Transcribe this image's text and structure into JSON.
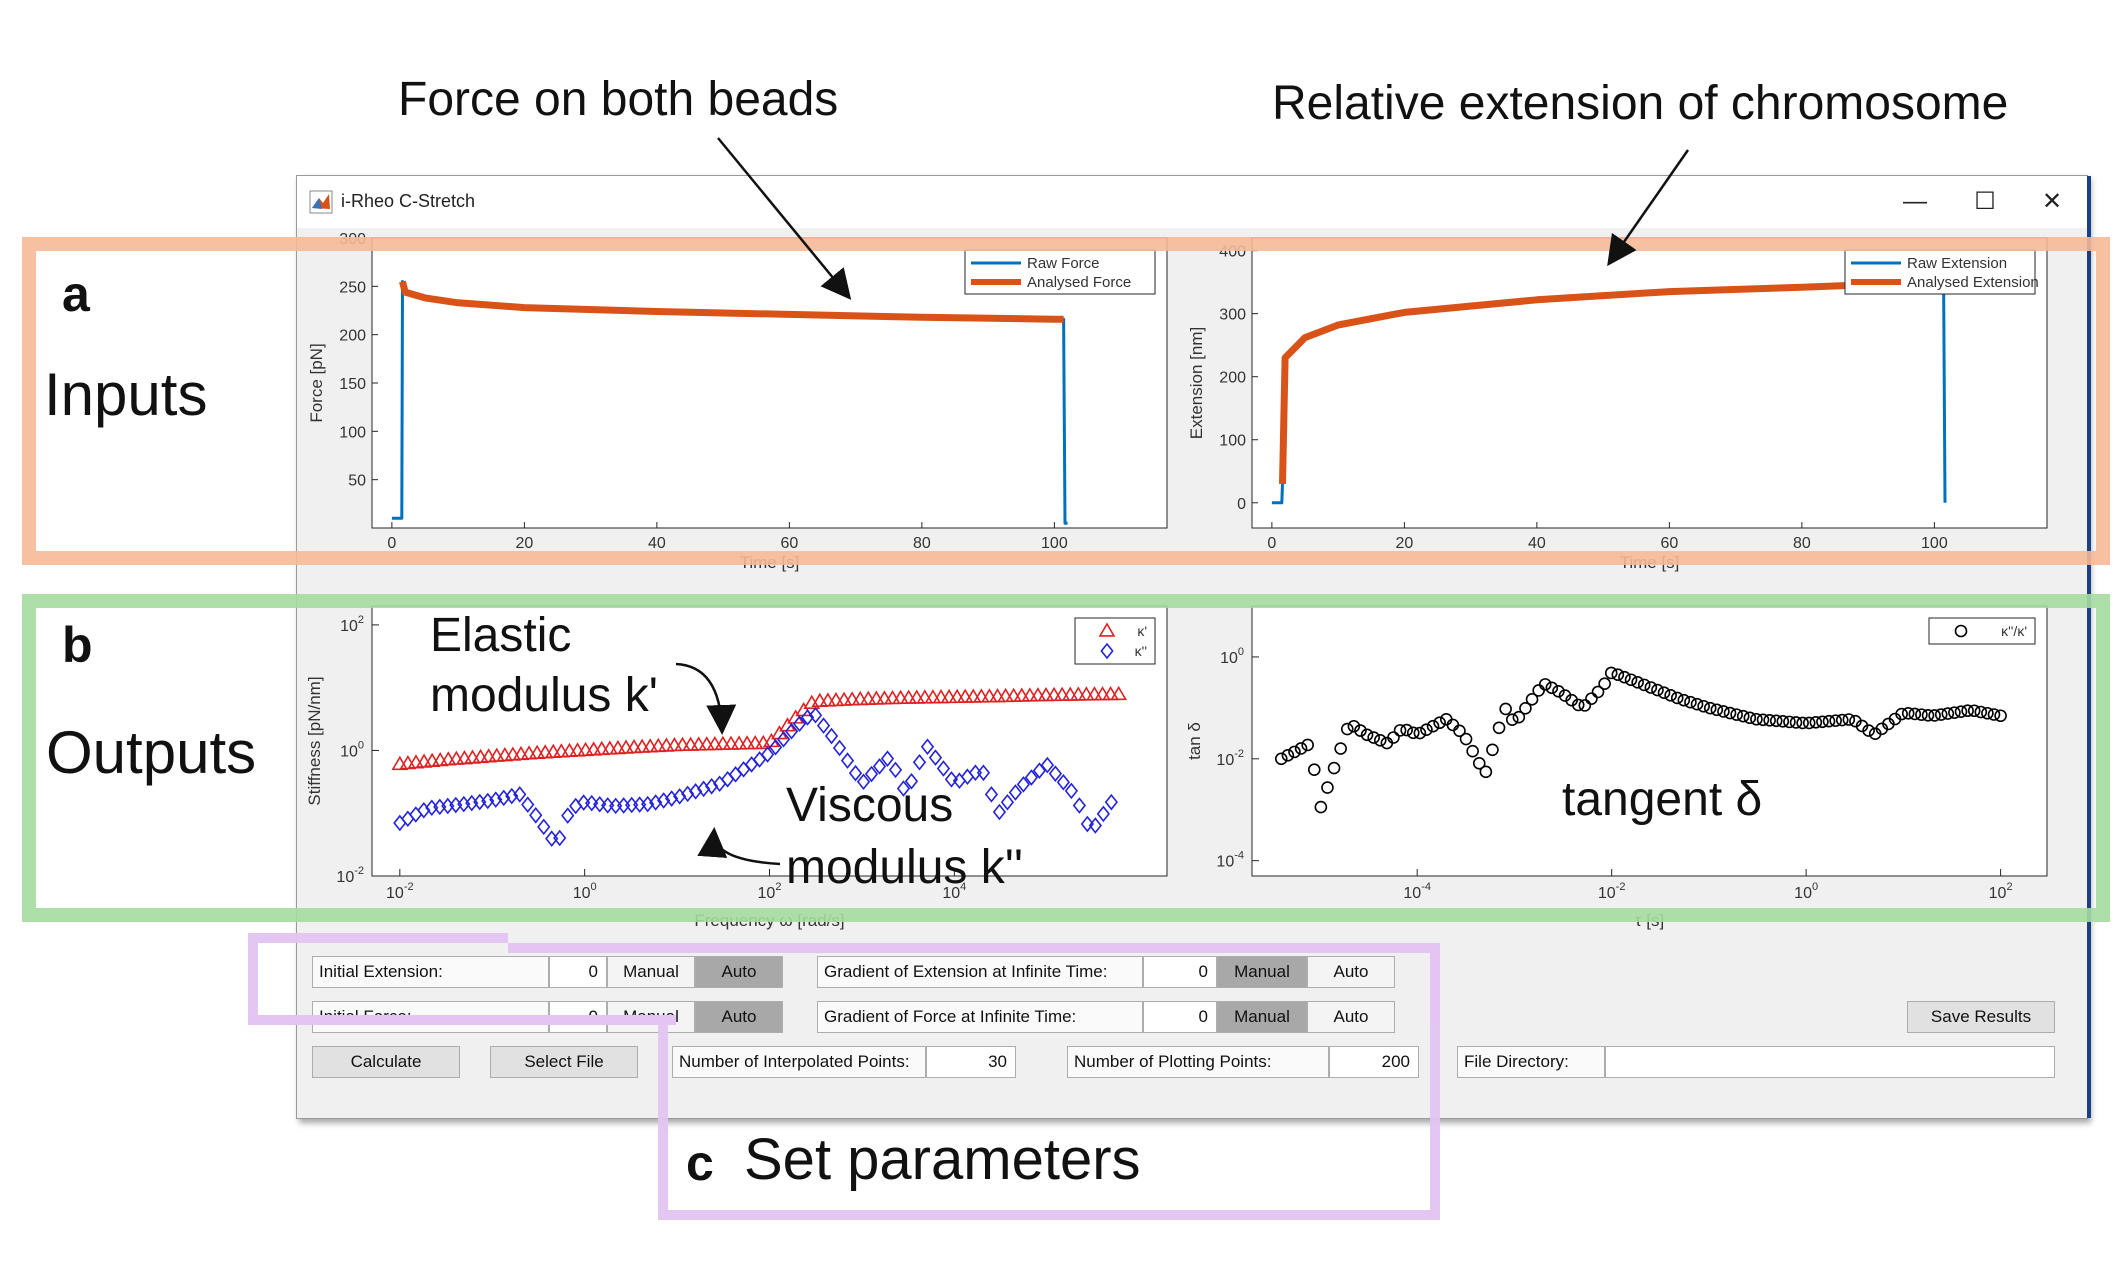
{
  "annotations": {
    "force_callout": "Force on both beads",
    "extension_callout": "Relative extension of chromosome",
    "elastic_line1": "Elastic",
    "elastic_line2": "modulus k'",
    "viscous_line1": "Viscous",
    "viscous_line2": "modulus k''",
    "tangent": "tangent δ",
    "panel_a": "a",
    "panel_b": "b",
    "panel_c": "c",
    "inputs": "Inputs",
    "outputs": "Outputs",
    "set_parameters": "Set parameters",
    "colors": {
      "inputs_box": "#f5b997",
      "outputs_box": "#a6dba0",
      "params_box": "#e3c4f2"
    }
  },
  "window": {
    "title": "i-Rheo C-Stretch",
    "minimize_icon": "minimize-icon",
    "maximize_icon": "maximize-icon",
    "close_icon": "close-icon",
    "app_icon": "matlab-icon"
  },
  "charts": {
    "force": {
      "title": "",
      "xlabel": "Time [s]",
      "ylabel": "Force [pN]",
      "xticks": [
        "0",
        "20",
        "40",
        "60",
        "80",
        "100"
      ],
      "yticks": [
        "50",
        "100",
        "150",
        "200",
        "250",
        "300"
      ],
      "legend": [
        "Raw Force",
        "Analysed Force"
      ]
    },
    "extension": {
      "title": "",
      "xlabel": "Time [s]",
      "ylabel": "Extension [nm]",
      "xticks": [
        "0",
        "20",
        "40",
        "60",
        "80",
        "100"
      ],
      "yticks": [
        "0",
        "100",
        "200",
        "300",
        "400"
      ],
      "legend": [
        "Raw Extension",
        "Analysed Extension"
      ]
    },
    "stiffness": {
      "title": "",
      "xlabel": "Frequency  ω [rad/s]",
      "ylabel": "Stiffness [pN/nm]",
      "xtick_base": [
        "10",
        "10",
        "10",
        "10"
      ],
      "xtick_exp": [
        "-2",
        "0",
        "2",
        "4"
      ],
      "ytick_base": [
        "10",
        "10",
        "10"
      ],
      "ytick_exp": [
        "2",
        "0",
        "-2"
      ],
      "legend": [
        "κ'",
        "κ''"
      ]
    },
    "tan_delta": {
      "title": "",
      "xlabel": "τ [s]",
      "ylabel": "tan δ",
      "xtick_base": [
        "10",
        "10",
        "10",
        "10"
      ],
      "xtick_exp": [
        "-4",
        "-2",
        "0",
        "2"
      ],
      "ytick_base": [
        "10",
        "10",
        "10"
      ],
      "ytick_exp": [
        "0",
        "-2",
        "-4"
      ],
      "legend": [
        "κ''/κ'"
      ]
    }
  },
  "chart_data": [
    {
      "type": "line",
      "xlabel": "Time [s]",
      "ylabel": "Force [pN]",
      "xlim": [
        -3,
        117
      ],
      "ylim": [
        0,
        300
      ],
      "legend_position": "top-right",
      "series": [
        {
          "name": "Raw Force",
          "color": "#0072bd",
          "x": [
            0,
            1.5,
            1.6,
            2,
            5,
            10,
            20,
            40,
            60,
            80,
            100,
            101.4,
            101.6,
            102
          ],
          "y": [
            10,
            10,
            255,
            244,
            238,
            233,
            228,
            224,
            221,
            218,
            216,
            216,
            5,
            5
          ]
        },
        {
          "name": "Analysed Force",
          "color": "#d95319",
          "x": [
            1.6,
            2,
            5,
            10,
            20,
            40,
            60,
            80,
            100,
            101.4
          ],
          "y": [
            255,
            244,
            238,
            233,
            228,
            224,
            221,
            218,
            216,
            216
          ]
        }
      ]
    },
    {
      "type": "line",
      "xlabel": "Time [s]",
      "ylabel": "Extension [nm]",
      "xlim": [
        -3,
        117
      ],
      "ylim": [
        -40,
        420
      ],
      "legend_position": "top-right",
      "series": [
        {
          "name": "Raw Extension",
          "color": "#0072bd",
          "x": [
            0,
            1.5,
            1.6,
            2,
            5,
            10,
            20,
            40,
            60,
            80,
            100,
            101.4,
            101.6
          ],
          "y": [
            0,
            0,
            30,
            230,
            262,
            282,
            302,
            322,
            335,
            342,
            350,
            350,
            0
          ]
        },
        {
          "name": "Analysed Extension",
          "color": "#d95319",
          "x": [
            1.6,
            2,
            5,
            10,
            20,
            40,
            60,
            80,
            100
          ],
          "y": [
            30,
            230,
            262,
            282,
            302,
            322,
            335,
            342,
            350
          ]
        }
      ]
    },
    {
      "type": "scatter",
      "xlabel": "Frequency  ω [rad/s]",
      "ylabel": "Stiffness [pN/nm]",
      "x_scale": "log",
      "y_scale": "log",
      "xlim": [
        0.005,
        2000000
      ],
      "ylim": [
        0.01,
        200
      ],
      "legend_position": "top-right",
      "series": [
        {
          "name": "κ'",
          "color": "#e02020",
          "marker": "triangle",
          "x": [
            0.01,
            0.03,
            0.1,
            0.3,
            1,
            3,
            10,
            30,
            100,
            200,
            300,
            1000,
            3000,
            10000,
            30000,
            100000,
            300000,
            600000
          ],
          "y": [
            0.6,
            0.7,
            0.8,
            0.9,
            1.0,
            1.1,
            1.2,
            1.25,
            1.3,
            3.5,
            6,
            6.5,
            6.8,
            7,
            7.2,
            7.5,
            7.7,
            7.8
          ]
        },
        {
          "name": "κ''",
          "color": "#2222dd",
          "marker": "diamond",
          "x": [
            0.01,
            0.02,
            0.05,
            0.1,
            0.2,
            0.3,
            0.5,
            0.7,
            1,
            2,
            5,
            10,
            30,
            100,
            200,
            300,
            500,
            1000,
            2000,
            3000,
            5000,
            10000,
            20000,
            30000,
            50000,
            100000,
            200000,
            300000,
            500000
          ],
          "y": [
            0.07,
            0.12,
            0.14,
            0.16,
            0.2,
            0.09,
            0.03,
            0.12,
            0.15,
            0.13,
            0.14,
            0.18,
            0.3,
            0.9,
            2.5,
            4,
            1.5,
            0.3,
            0.8,
            0.2,
            1.2,
            0.3,
            0.5,
            0.1,
            0.25,
            0.6,
            0.2,
            0.05,
            0.15
          ]
        }
      ]
    },
    {
      "type": "scatter",
      "xlabel": "τ [s]",
      "ylabel": "tan δ",
      "x_scale": "log",
      "y_scale": "log",
      "xlim": [
        2e-06,
        300
      ],
      "ylim": [
        5e-05,
        10
      ],
      "legend_position": "top-right",
      "series": [
        {
          "name": "κ''/κ'",
          "color": "#000000",
          "marker": "circle",
          "x": [
            4e-06,
            8e-06,
            1e-05,
            2e-05,
            3e-05,
            5e-05,
            7e-05,
            0.0001,
            0.0002,
            0.0003,
            0.0005,
            0.0008,
            0.001,
            0.002,
            0.003,
            0.005,
            0.008,
            0.01,
            0.02,
            0.05,
            0.1,
            0.3,
            1,
            3,
            5,
            10,
            20,
            50,
            100
          ],
          "y": [
            0.01,
            0.02,
            0.001,
            0.05,
            0.03,
            0.02,
            0.04,
            0.03,
            0.06,
            0.03,
            0.005,
            0.1,
            0.05,
            0.3,
            0.2,
            0.1,
            0.25,
            0.5,
            0.3,
            0.15,
            0.1,
            0.06,
            0.05,
            0.06,
            0.03,
            0.08,
            0.07,
            0.09,
            0.07
          ]
        }
      ]
    }
  ],
  "controls": {
    "initial_extension_label": "Initial Extension:",
    "initial_extension_value": "0",
    "initial_force_label": "Initial Force:",
    "initial_force_value": "0",
    "manual": "Manual",
    "auto": "Auto",
    "gradient_extension_label": "Gradient of Extension at Infinite Time:",
    "gradient_extension_value": "0",
    "gradient_force_label": "Gradient of Force at Infinite Time:",
    "gradient_force_value": "0",
    "calculate": "Calculate",
    "select_file": "Select File",
    "interp_label": "Number of Interpolated Points:",
    "interp_value": "30",
    "plot_label": "Number of Plotting Points:",
    "plot_value": "200",
    "file_dir_label": "File Directory:",
    "file_dir_value": "",
    "save_results": "Save Results"
  }
}
